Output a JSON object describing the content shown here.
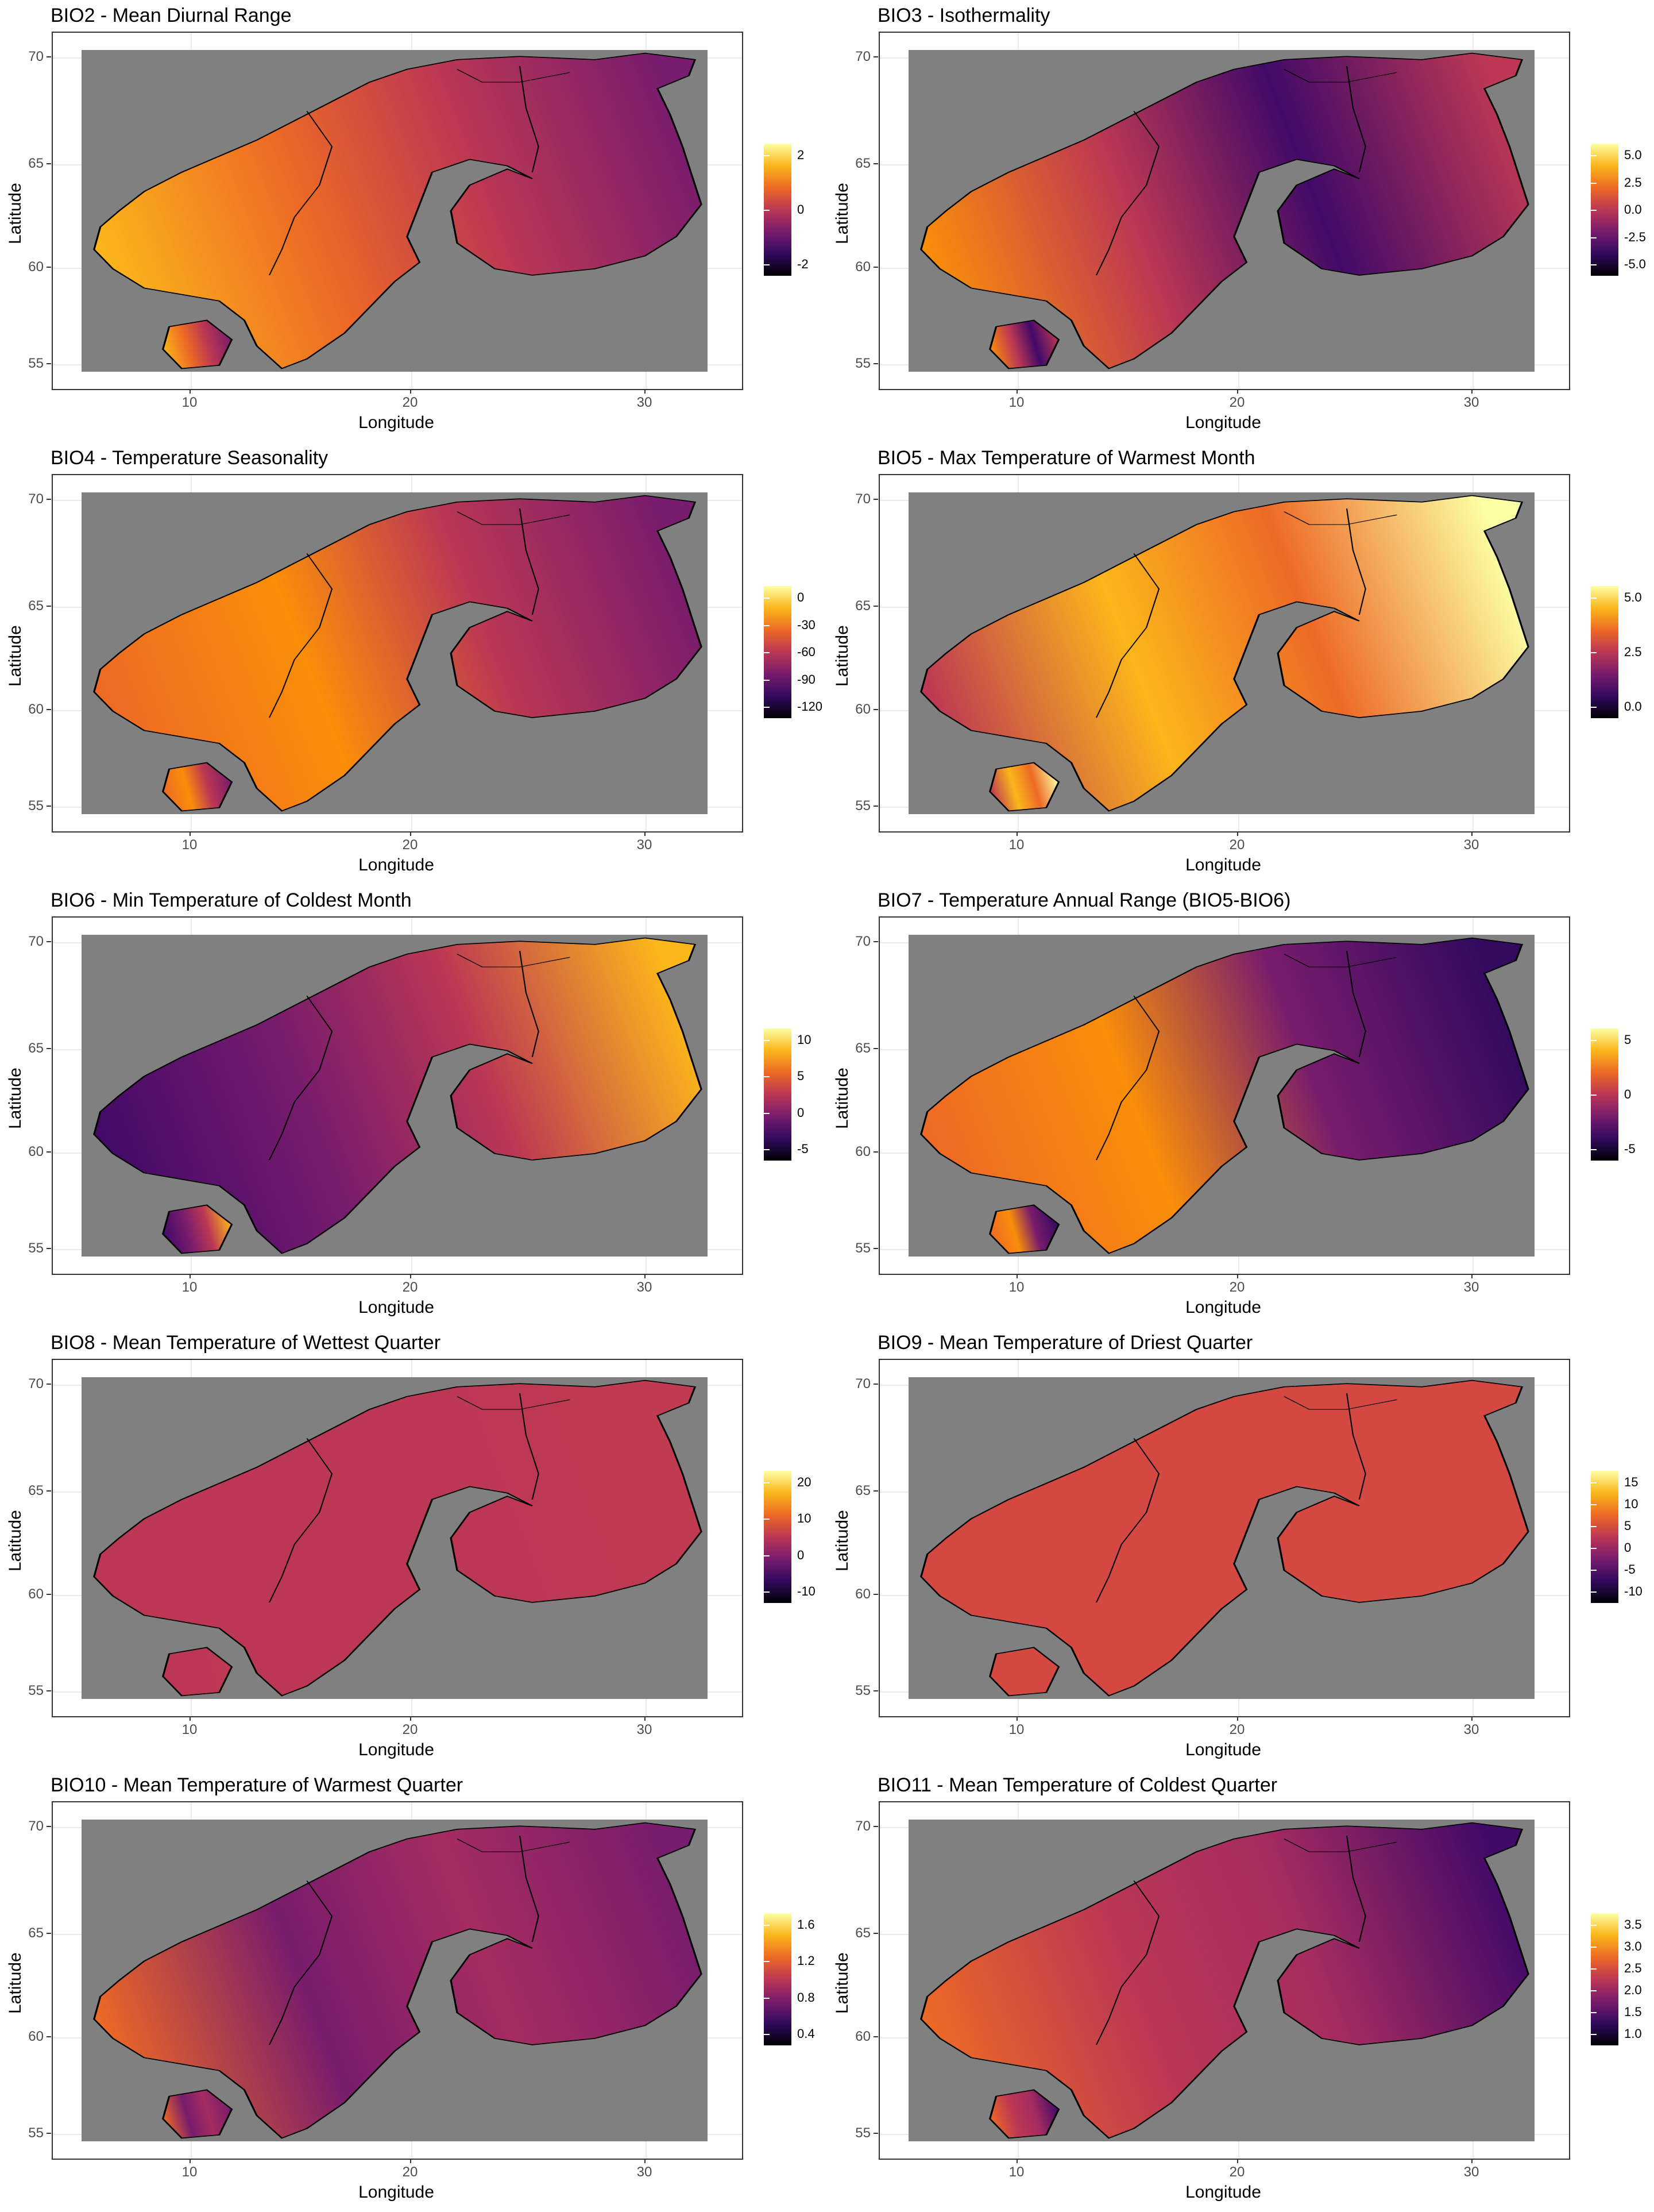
{
  "x_axis": {
    "label": "Longitude",
    "ticks": [
      "10",
      "20",
      "30"
    ]
  },
  "y_axis": {
    "label": "Latitude",
    "ticks": [
      "70",
      "65",
      "60",
      "55"
    ]
  },
  "colormap": "inferno",
  "background_color": "#808080",
  "panels": [
    {
      "title": "BIO2 - Mean Diurnal Range",
      "legend": [
        "2",
        "0",
        "-2"
      ]
    },
    {
      "title": "BIO3 - Isothermality",
      "legend": [
        "5.0",
        "2.5",
        "0.0",
        "-2.5",
        "-5.0"
      ]
    },
    {
      "title": "BIO4 - Temperature Seasonality",
      "legend": [
        "0",
        "-30",
        "-60",
        "-90",
        "-120"
      ]
    },
    {
      "title": "BIO5 - Max Temperature of Warmest Month",
      "legend": [
        "5.0",
        "2.5",
        "0.0"
      ]
    },
    {
      "title": "BIO6 - Min Temperature of Coldest Month",
      "legend": [
        "10",
        "5",
        "0",
        "-5"
      ]
    },
    {
      "title": "BIO7 - Temperature Annual Range (BIO5-BIO6)",
      "legend": [
        "5",
        "0",
        "-5"
      ]
    },
    {
      "title": "BIO8 - Mean Temperature of Wettest Quarter",
      "legend": [
        "20",
        "10",
        "0",
        "-10"
      ]
    },
    {
      "title": "BIO9 - Mean Temperature of Driest Quarter",
      "legend": [
        "15",
        "10",
        "5",
        "0",
        "-5",
        "-10"
      ]
    },
    {
      "title": "BIO10 - Mean Temperature of Warmest Quarter",
      "legend": [
        "1.6",
        "1.2",
        "0.8",
        "0.4"
      ]
    },
    {
      "title": "BIO11 - Mean Temperature of Coldest Quarter",
      "legend": [
        "3.5",
        "3.0",
        "2.5",
        "2.0",
        "1.5",
        "1.0"
      ]
    }
  ],
  "chart_data": {
    "type": "heatmap",
    "x_range": [
      4,
      32
    ],
    "y_range": [
      54.5,
      71
    ],
    "region": "Scandinavia and Finland"
  }
}
